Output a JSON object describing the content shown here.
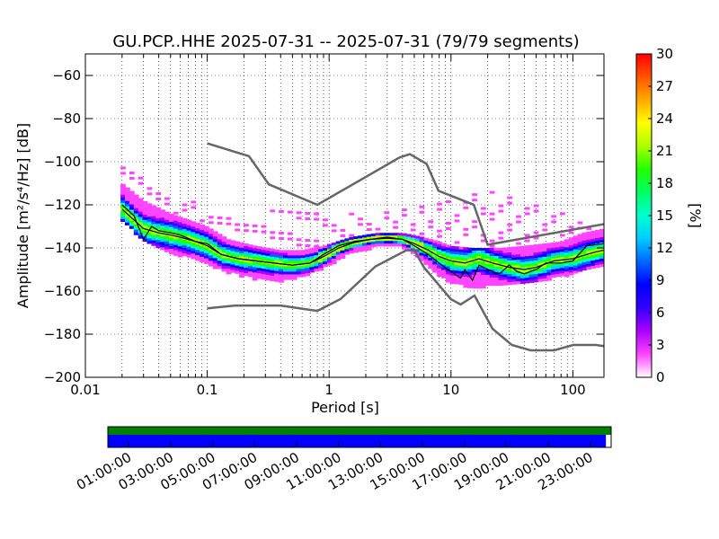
{
  "chart_data": [
    {
      "type": "heatmap",
      "title": "GU.PCP..HHE   2025-07-31 -- 2025-07-31  (79/79 segments)",
      "xlabel": "Period [s]",
      "ylabel": "Amplitude [m²/s⁴/Hz] [dB]",
      "xscale": "log",
      "xlim": [
        0.01,
        180
      ],
      "ylim": [
        -200,
        -50
      ],
      "x_ticks": [
        {
          "value": 0.01,
          "label": "0.01"
        },
        {
          "value": 0.1,
          "label": "0.1"
        },
        {
          "value": 1,
          "label": "1"
        },
        {
          "value": 10,
          "label": "10"
        },
        {
          "value": 100,
          "label": "100"
        }
      ],
      "y_ticks": [
        {
          "value": -60,
          "label": "−60"
        },
        {
          "value": -80,
          "label": "−80"
        },
        {
          "value": -100,
          "label": "−100"
        },
        {
          "value": -120,
          "label": "−120"
        },
        {
          "value": -140,
          "label": "−140"
        },
        {
          "value": -160,
          "label": "−160"
        },
        {
          "value": -180,
          "label": "−180"
        },
        {
          "value": -200,
          "label": "−200"
        }
      ],
      "grid": "dotted",
      "colorbar": {
        "label": "[%]",
        "min": 0,
        "max": 30,
        "ticks": [
          "0",
          "3",
          "6",
          "9",
          "12",
          "15",
          "18",
          "21",
          "24",
          "27",
          "30"
        ],
        "colormap": [
          "#ffffff",
          "#ff44ff",
          "#aa00ff",
          "#3300ff",
          "#0000ff",
          "#0066ff",
          "#00ccff",
          "#00ffcc",
          "#00ff66",
          "#22ff00",
          "#aaff00",
          "#ffff00",
          "#ffaa00",
          "#ff5500",
          "#ff0000"
        ]
      },
      "model_lines": {
        "color": "#666666",
        "high_noise_model": [
          [
            0.1,
            -91.5
          ],
          [
            0.22,
            -97.4
          ],
          [
            0.32,
            -110.5
          ],
          [
            0.8,
            -120
          ],
          [
            3.8,
            -98
          ],
          [
            4.6,
            -96.5
          ],
          [
            6.3,
            -101
          ],
          [
            7.9,
            -113.5
          ],
          [
            15.4,
            -120
          ],
          [
            20,
            -138.5
          ],
          [
            354.8,
            -126
          ],
          [
            100000,
            -48.5
          ]
        ],
        "low_noise_model": [
          [
            0.1,
            -168
          ],
          [
            0.17,
            -166.7
          ],
          [
            0.4,
            -166.7
          ],
          [
            0.8,
            -169.2
          ],
          [
            1.24,
            -163.7
          ],
          [
            2.4,
            -148.6
          ],
          [
            4.3,
            -141.1
          ],
          [
            5,
            -141.1
          ],
          [
            6,
            -149
          ],
          [
            10,
            -163.8
          ],
          [
            12,
            -166.2
          ],
          [
            15.6,
            -162.1
          ],
          [
            21.9,
            -177.5
          ],
          [
            31.6,
            -185
          ],
          [
            45,
            -187.5
          ],
          [
            70,
            -187.5
          ],
          [
            101,
            -185
          ],
          [
            154,
            -185
          ],
          [
            328,
            -187.5
          ]
        ]
      },
      "median_curve": [
        [
          0.02,
          -122
        ],
        [
          0.025,
          -127
        ],
        [
          0.03,
          -131
        ],
        [
          0.04,
          -133
        ],
        [
          0.05,
          -134
        ],
        [
          0.06,
          -135
        ],
        [
          0.08,
          -137
        ],
        [
          0.1,
          -139
        ],
        [
          0.13,
          -143
        ],
        [
          0.18,
          -145
        ],
        [
          0.25,
          -146
        ],
        [
          0.35,
          -147
        ],
        [
          0.5,
          -148
        ],
        [
          0.7,
          -147
        ],
        [
          0.9,
          -144
        ],
        [
          1.2,
          -140
        ],
        [
          1.6,
          -137.5
        ],
        [
          2.2,
          -136
        ],
        [
          3,
          -135.5
        ],
        [
          4,
          -136
        ],
        [
          5,
          -138
        ],
        [
          6.5,
          -141
        ],
        [
          8,
          -144
        ],
        [
          10,
          -146
        ],
        [
          13,
          -147
        ],
        [
          17,
          -145
        ],
        [
          22,
          -147
        ],
        [
          30,
          -149
        ],
        [
          40,
          -150
        ],
        [
          50,
          -149
        ],
        [
          70,
          -146
        ],
        [
          100,
          -145
        ],
        [
          150,
          -142
        ],
        [
          180,
          -141
        ]
      ],
      "mode_curve": [
        [
          0.02,
          -120
        ],
        [
          0.025,
          -125
        ],
        [
          0.03,
          -136
        ],
        [
          0.035,
          -130
        ],
        [
          0.04,
          -132
        ],
        [
          0.05,
          -133
        ],
        [
          0.06,
          -134
        ],
        [
          0.08,
          -137
        ],
        [
          0.1,
          -138
        ],
        [
          0.13,
          -143
        ],
        [
          0.18,
          -145
        ],
        [
          0.25,
          -146
        ],
        [
          0.35,
          -147
        ],
        [
          0.5,
          -148
        ],
        [
          0.7,
          -147
        ],
        [
          0.9,
          -143
        ],
        [
          1.2,
          -139
        ],
        [
          1.6,
          -137
        ],
        [
          2.2,
          -136
        ],
        [
          3,
          -135
        ],
        [
          4,
          -136
        ],
        [
          5,
          -139
        ],
        [
          6.5,
          -143
        ],
        [
          8,
          -147
        ],
        [
          10,
          -151
        ],
        [
          12,
          -154
        ],
        [
          13,
          -150
        ],
        [
          15,
          -155
        ],
        [
          17,
          -148
        ],
        [
          22,
          -151
        ],
        [
          25,
          -152
        ],
        [
          30,
          -148
        ],
        [
          35,
          -151
        ],
        [
          40,
          -152
        ],
        [
          50,
          -150
        ],
        [
          60,
          -147
        ],
        [
          80,
          -147
        ],
        [
          100,
          -146
        ],
        [
          130,
          -139
        ],
        [
          180,
          -138
        ]
      ],
      "distribution_band": {
        "lower": [
          [
            0.02,
            -127
          ],
          [
            0.03,
            -136
          ],
          [
            0.05,
            -142
          ],
          [
            0.08,
            -145
          ],
          [
            0.1,
            -147
          ],
          [
            0.15,
            -151
          ],
          [
            0.25,
            -154
          ],
          [
            0.4,
            -155
          ],
          [
            0.6,
            -153
          ],
          [
            0.9,
            -149
          ],
          [
            1.5,
            -142
          ],
          [
            2.5,
            -139
          ],
          [
            4,
            -139
          ],
          [
            6,
            -146
          ],
          [
            8,
            -152
          ],
          [
            10,
            -156
          ],
          [
            15,
            -158
          ],
          [
            25,
            -157
          ],
          [
            40,
            -156
          ],
          [
            80,
            -153
          ],
          [
            120,
            -150
          ],
          [
            180,
            -148
          ]
        ],
        "upper": [
          [
            0.02,
            -110
          ],
          [
            0.03,
            -118
          ],
          [
            0.05,
            -124
          ],
          [
            0.08,
            -128
          ],
          [
            0.1,
            -130
          ],
          [
            0.15,
            -136
          ],
          [
            0.25,
            -139
          ],
          [
            0.4,
            -141
          ],
          [
            0.6,
            -141
          ],
          [
            0.9,
            -139
          ],
          [
            1.5,
            -135
          ],
          [
            2.5,
            -133
          ],
          [
            4,
            -133
          ],
          [
            6,
            -135
          ],
          [
            8,
            -137
          ],
          [
            10,
            -139
          ],
          [
            15,
            -140
          ],
          [
            25,
            -140
          ],
          [
            40,
            -139
          ],
          [
            80,
            -137
          ],
          [
            120,
            -133
          ],
          [
            180,
            -131
          ]
        ],
        "outliers_upper": [
          [
            0.02,
            -102
          ],
          [
            0.05,
            -115
          ],
          [
            0.1,
            -120
          ],
          [
            0.3,
            -122
          ],
          [
            1,
            -124
          ],
          [
            3,
            -123
          ],
          [
            8,
            -119
          ],
          [
            20,
            -113
          ],
          [
            100,
            -125
          ],
          [
            180,
            -126
          ]
        ]
      }
    },
    {
      "type": "timeline",
      "x_ticks": [
        "01:00:00",
        "03:00:00",
        "05:00:00",
        "07:00:00",
        "09:00:00",
        "11:00:00",
        "13:00:00",
        "15:00:00",
        "17:00:00",
        "19:00:00",
        "21:00:00",
        "23:00:00"
      ],
      "tracks": [
        {
          "color": "#008000",
          "coverage_start_hour": 0,
          "coverage_end_hour": 24
        },
        {
          "color": "#0000ff",
          "coverage_start_hour": 0,
          "coverage_end_hour": 23.75
        }
      ]
    }
  ]
}
